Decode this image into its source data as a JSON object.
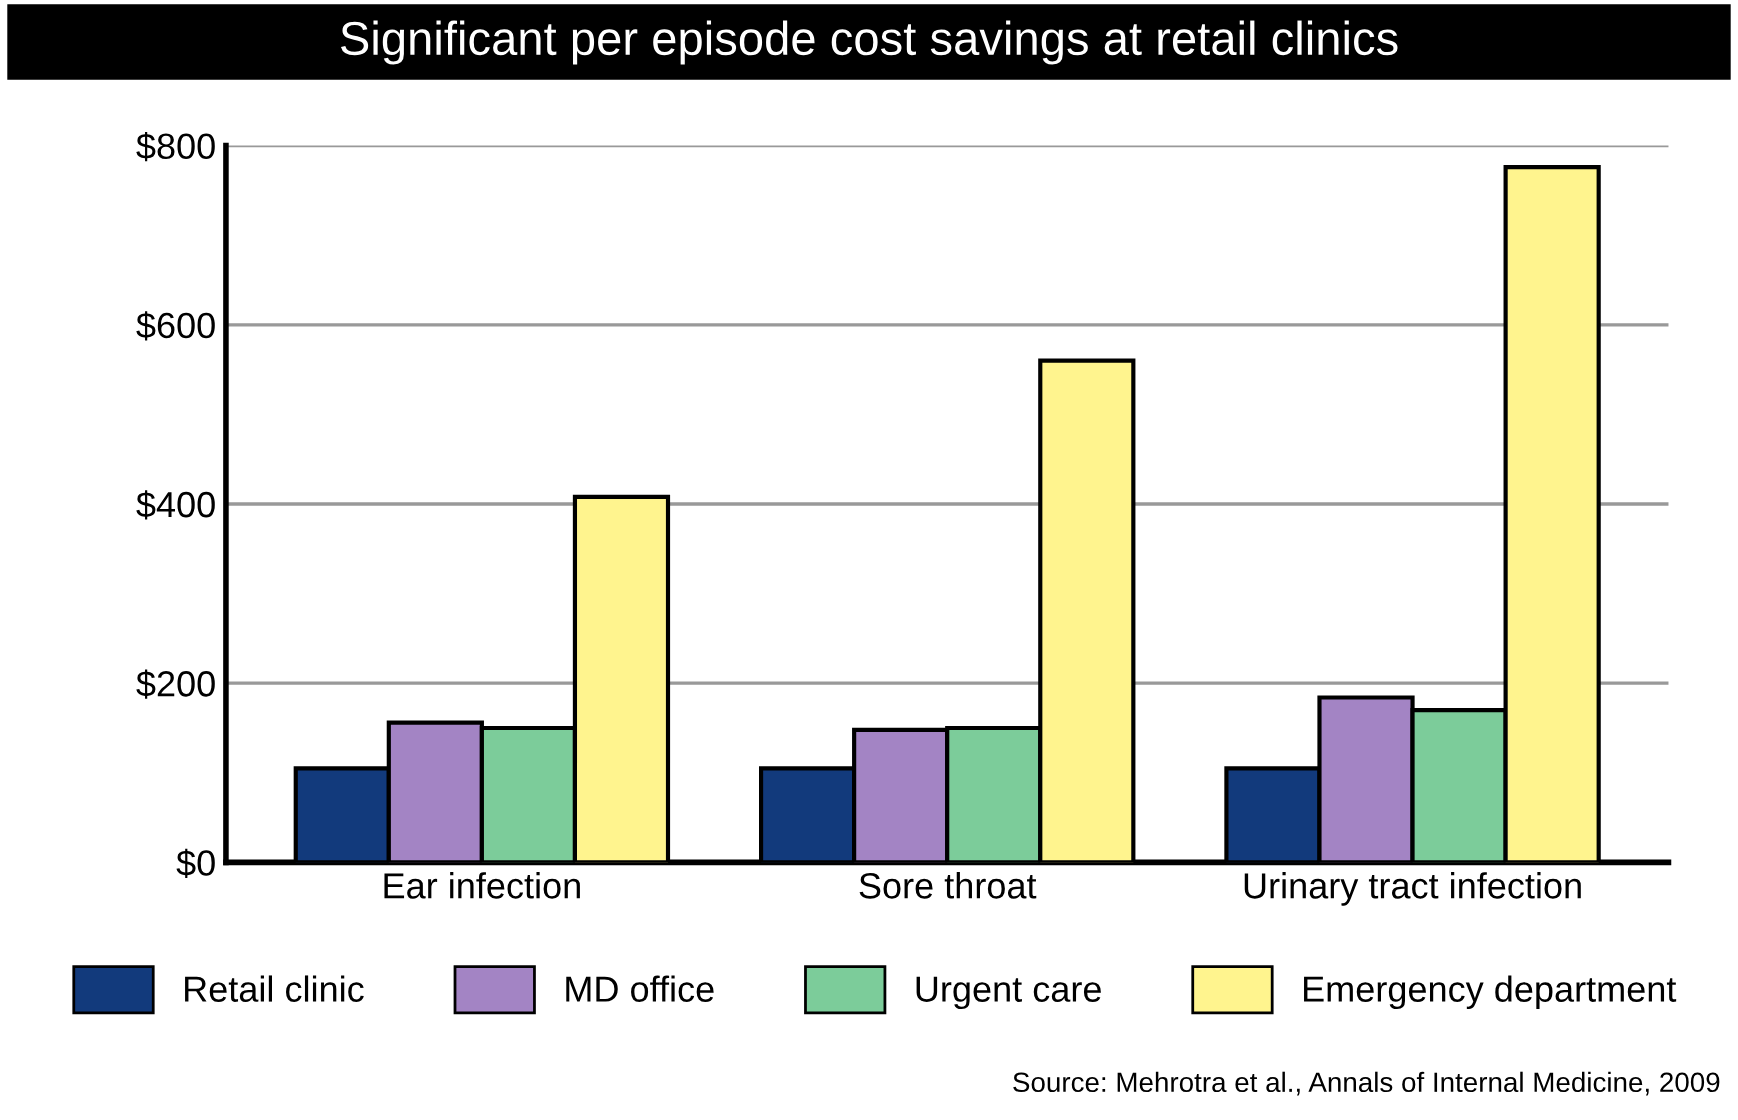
{
  "chart_data": {
    "type": "bar",
    "title": "Significant per episode cost savings at retail clinics",
    "categories": [
      "Ear infection",
      "Sore throat",
      "Urinary tract infection"
    ],
    "series": [
      {
        "name": "Retail clinic",
        "color": "#123a7c",
        "values": [
          105,
          105,
          105
        ]
      },
      {
        "name": "MD office",
        "color": "#a384c4",
        "values": [
          156,
          148,
          184
        ]
      },
      {
        "name": "Urgent care",
        "color": "#7ccc9a",
        "values": [
          150,
          150,
          170
        ]
      },
      {
        "name": "Emergency department",
        "color": "#fff48e",
        "values": [
          408,
          560,
          776
        ]
      }
    ],
    "ylim": [
      0,
      800
    ],
    "yticks": [
      {
        "value": 0,
        "label": "$0"
      },
      {
        "value": 200,
        "label": "$200"
      },
      {
        "value": 400,
        "label": "$400"
      },
      {
        "value": 600,
        "label": "$600"
      },
      {
        "value": 800,
        "label": "$800"
      }
    ],
    "grid": "y",
    "legend": "bottom",
    "annotations": [
      "Source: Mehrotra et al., Annals of Internal Medicine, 2009"
    ]
  }
}
